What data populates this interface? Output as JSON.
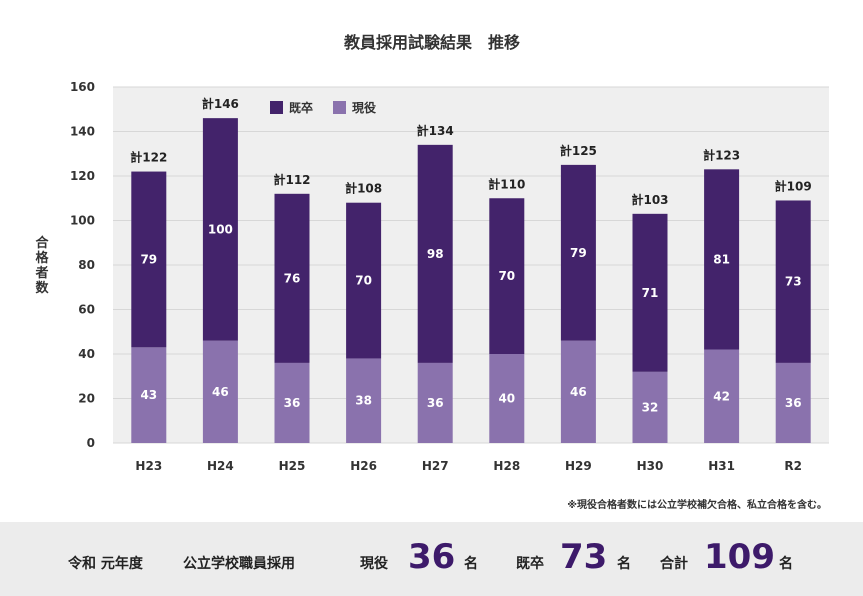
{
  "chart_data": {
    "type": "bar",
    "stacked": true,
    "title": "教員採用試験結果　推移",
    "ylabel": "合格者数",
    "ylim": [
      0,
      160
    ],
    "yticks": [
      0,
      20,
      40,
      60,
      80,
      100,
      120,
      140,
      160
    ],
    "grid": true,
    "legend_placement": "top-left",
    "categories": [
      "H23",
      "H24",
      "H25",
      "H26",
      "H27",
      "H28",
      "H29",
      "H30",
      "H31",
      "R2"
    ],
    "series": [
      {
        "name": "現役",
        "color": "#8a72ad",
        "values": [
          43,
          46,
          36,
          38,
          36,
          40,
          46,
          32,
          42,
          36
        ]
      },
      {
        "name": "既卒",
        "color": "#43236b",
        "values": [
          79,
          100,
          76,
          70,
          98,
          70,
          79,
          71,
          81,
          73
        ]
      }
    ],
    "totals": [
      "計122",
      "計146",
      "計112",
      "計108",
      "計134",
      "計110",
      "計125",
      "計103",
      "計123",
      "計109"
    ],
    "note": "※現役合格者数には公立学校補欠合格、私立合格を含む。"
  },
  "summary": {
    "year": "令和 元年度",
    "category": "公立学校職員採用",
    "current_label": "現役",
    "current_value": "36",
    "graduate_label": "既卒",
    "graduate_value": "73",
    "total_label": "合計",
    "total_value": "109",
    "unit": "名"
  },
  "colors": {
    "plot_bg": "#efefef",
    "grid": "#d7d7d7",
    "accent": "#3d1a6a"
  }
}
